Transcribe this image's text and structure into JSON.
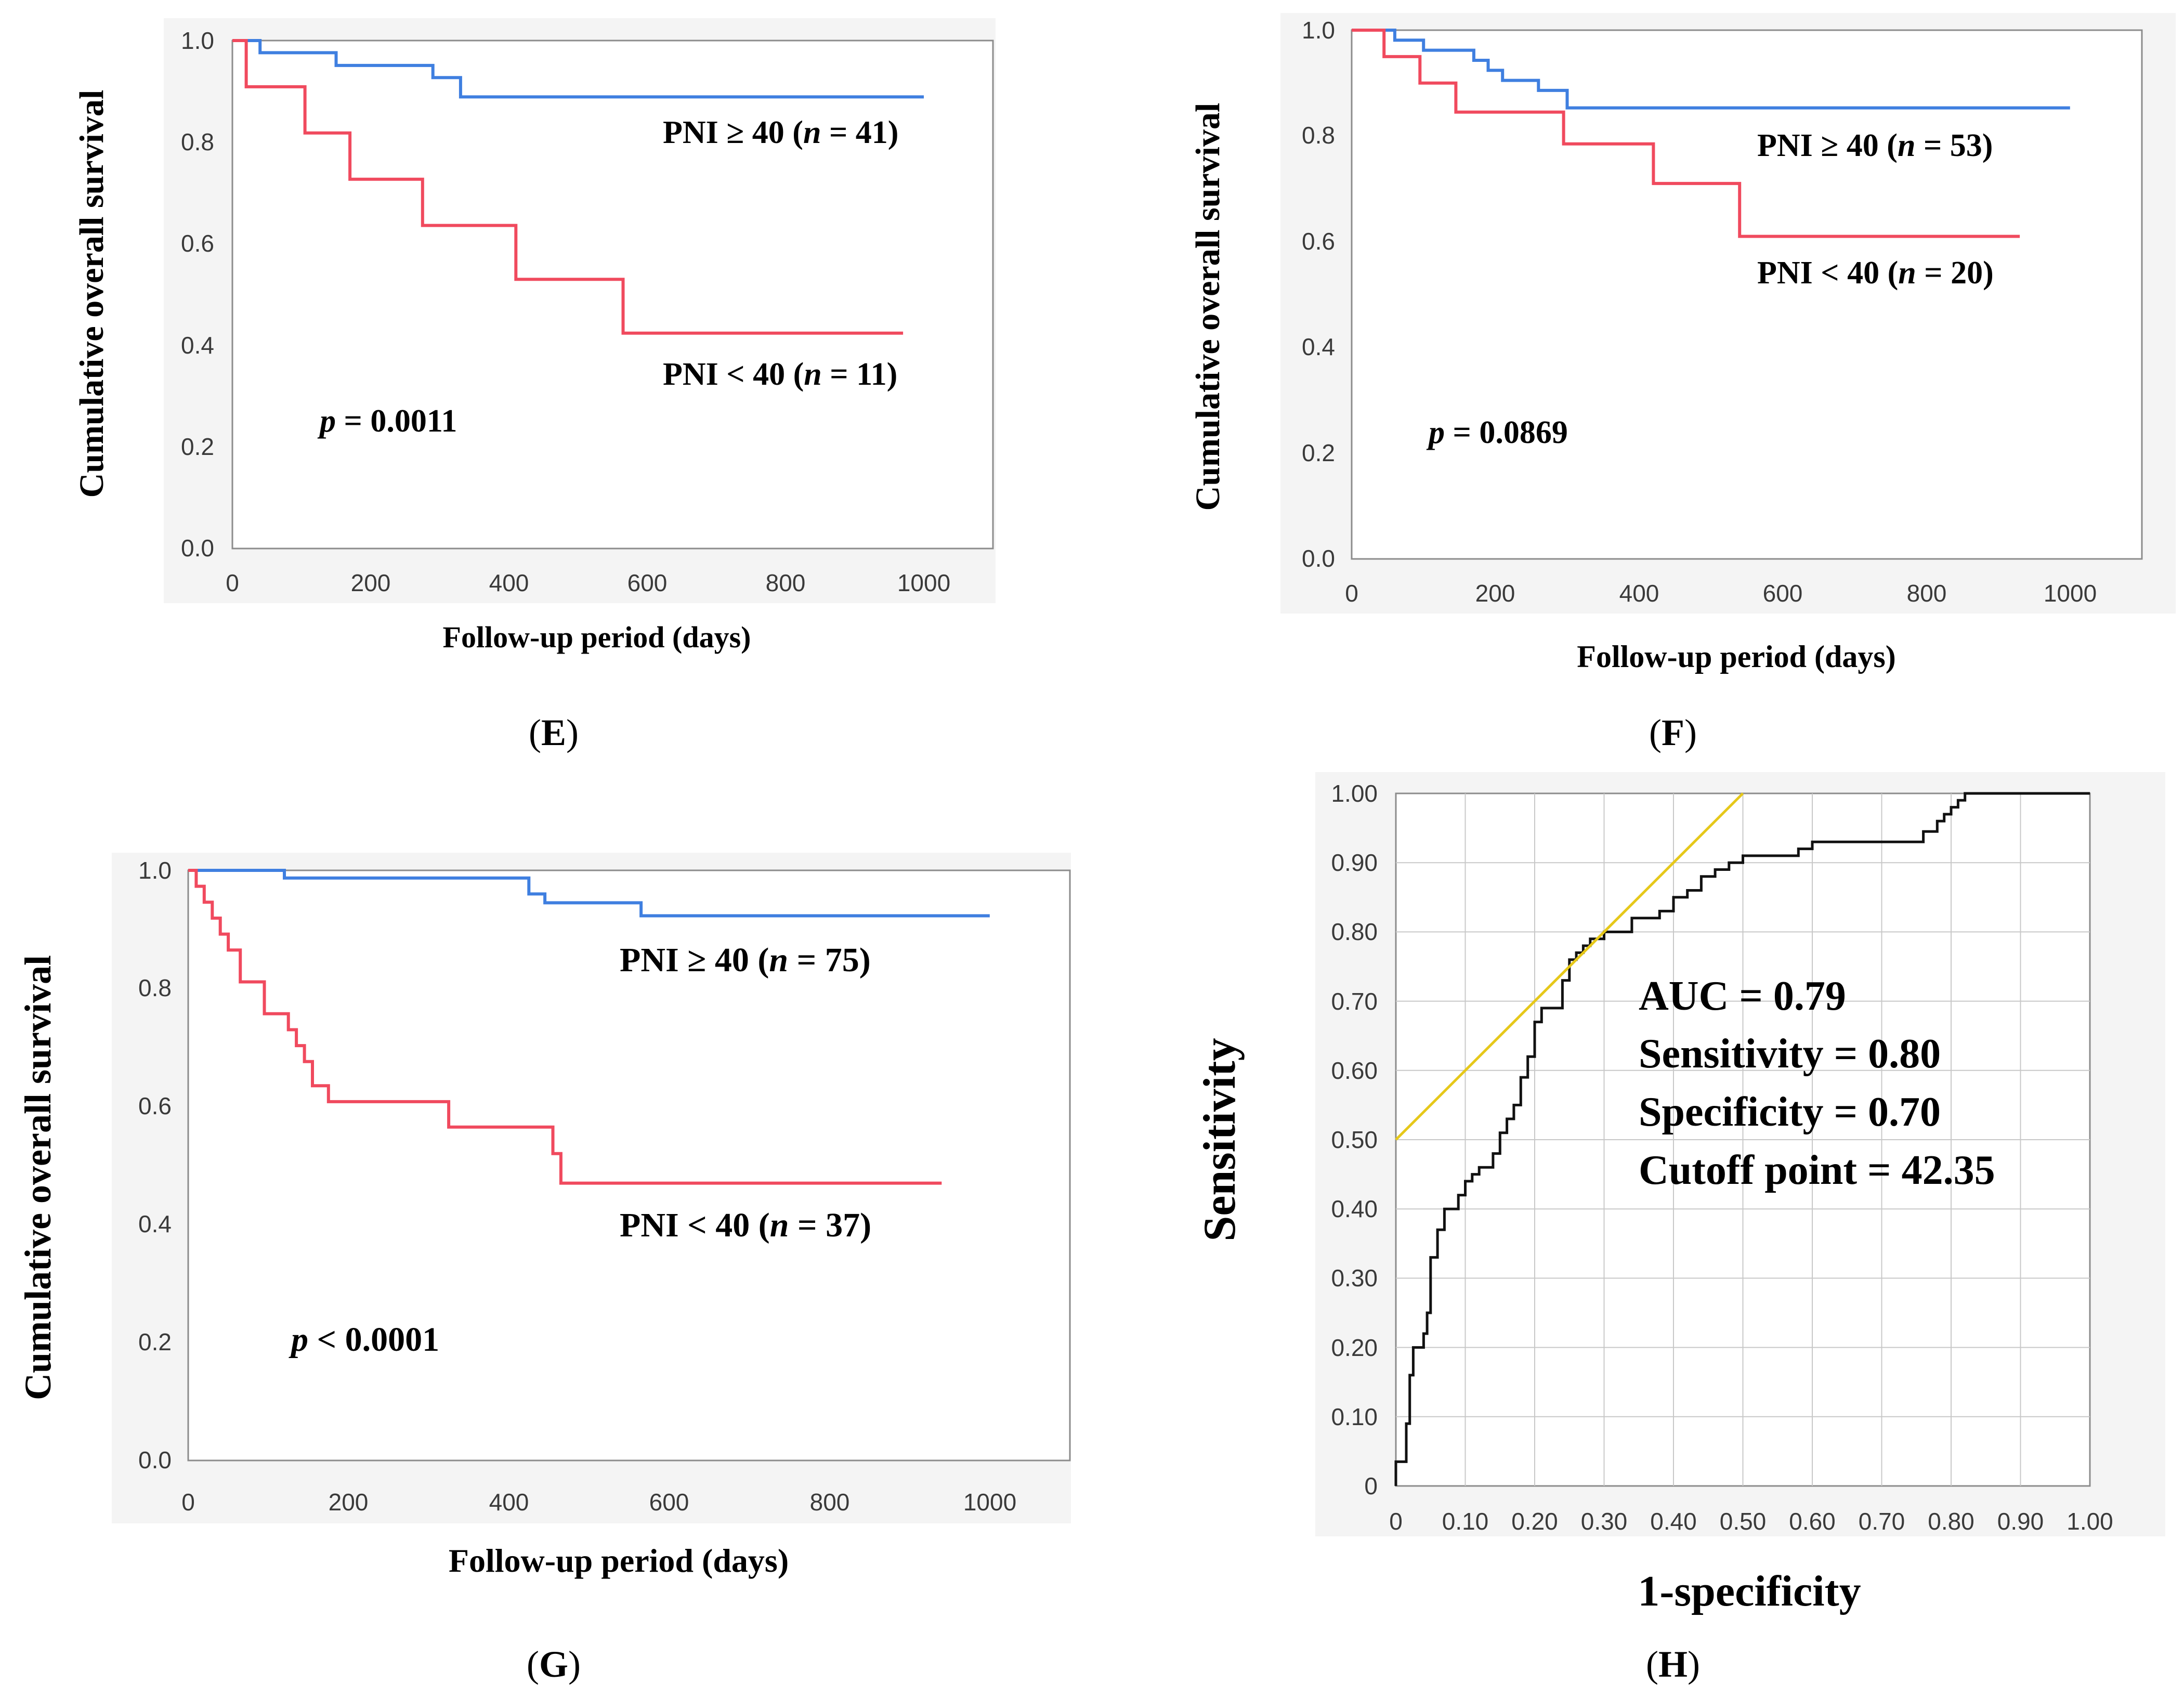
{
  "colors": {
    "high_pni": "#3f7fe0",
    "low_pni": "#f04a5e",
    "roc": "#111111",
    "reference_line": "#e6c81a",
    "frame": "#8c8c8c",
    "grid": "#c8c8c8",
    "panel_bg": "#f4f4f4"
  },
  "chart_data": [
    {
      "id": "E",
      "type": "line",
      "label": "E",
      "ylabel": "Cumulative overall survival",
      "xlabel": "Follow-up period (days)",
      "xlim": [
        0,
        1100
      ],
      "ylim": [
        0,
        1
      ],
      "xticks": [
        0,
        200,
        400,
        600,
        800,
        1000
      ],
      "yticks": [
        0,
        0.2,
        0.4,
        0.6,
        0.8,
        1.0
      ],
      "ytick_labels": [
        "0.0",
        "0.2",
        "0.4",
        "0.6",
        "0.8",
        "1.0"
      ],
      "series": [
        {
          "name": "PNI ≥ 40",
          "color_key": "high_pni",
          "label_prefix": "PNI ≥ 40 (",
          "n_symbol": "n",
          "label_suffix": " = 41)",
          "x": [
            0,
            40,
            150,
            290,
            330,
            1000
          ],
          "y": [
            1.0,
            0.976,
            0.951,
            0.927,
            0.889,
            0.889
          ]
        },
        {
          "name": "PNI < 40",
          "color_key": "low_pni",
          "label_prefix": "PNI < 40 (",
          "n_symbol": "n",
          "label_suffix": " = 11)",
          "x": [
            0,
            20,
            105,
            170,
            275,
            410,
            565,
            970
          ],
          "y": [
            1.0,
            0.909,
            0.818,
            0.727,
            0.636,
            0.53,
            0.424,
            0.424
          ]
        }
      ],
      "pvalue": {
        "symbol": "p",
        "text": " = 0.0011"
      }
    },
    {
      "id": "F",
      "type": "line",
      "label": "F",
      "ylabel": "Cumulative overall survival",
      "xlabel": "Follow-up period (days)",
      "xlim": [
        0,
        1100
      ],
      "ylim": [
        0,
        1
      ],
      "xticks": [
        0,
        200,
        400,
        600,
        800,
        1000
      ],
      "yticks": [
        0,
        0.2,
        0.4,
        0.6,
        0.8,
        1.0
      ],
      "ytick_labels": [
        "0.0",
        "0.2",
        "0.4",
        "0.6",
        "0.8",
        "1.0"
      ],
      "series": [
        {
          "name": "PNI ≥ 40",
          "color_key": "high_pni",
          "label_prefix": "PNI ≥ 40 (",
          "n_symbol": "n",
          "label_suffix": " = 53)",
          "x": [
            0,
            60,
            100,
            170,
            190,
            210,
            260,
            300,
            1000
          ],
          "y": [
            1.0,
            0.981,
            0.962,
            0.943,
            0.924,
            0.905,
            0.886,
            0.853,
            0.853
          ]
        },
        {
          "name": "PNI < 40",
          "color_key": "low_pni",
          "label_prefix": "PNI < 40 (",
          "n_symbol": "n",
          "label_suffix": " = 20)",
          "x": [
            0,
            45,
            95,
            145,
            295,
            420,
            540,
            930
          ],
          "y": [
            1.0,
            0.95,
            0.9,
            0.845,
            0.785,
            0.71,
            0.61,
            0.61
          ]
        }
      ],
      "pvalue": {
        "symbol": "p",
        "text": " = 0.0869"
      }
    },
    {
      "id": "G",
      "type": "line",
      "label": "G",
      "ylabel": "Cumulative overall survival",
      "xlabel": "Follow-up period (days)",
      "xlim": [
        0,
        1100
      ],
      "ylim": [
        0,
        1
      ],
      "xticks": [
        0,
        200,
        400,
        600,
        800,
        1000
      ],
      "yticks": [
        0,
        0.2,
        0.4,
        0.6,
        0.8,
        1.0
      ],
      "ytick_labels": [
        "0.0",
        "0.2",
        "0.4",
        "0.6",
        "0.8",
        "1.0"
      ],
      "series": [
        {
          "name": "PNI ≥ 40",
          "color_key": "high_pni",
          "label_prefix": "PNI ≥ 40 (",
          "n_symbol": "n",
          "label_suffix": " = 75)",
          "x": [
            0,
            120,
            425,
            445,
            565,
            1000
          ],
          "y": [
            1.0,
            0.987,
            0.96,
            0.945,
            0.923,
            0.923
          ]
        },
        {
          "name": "PNI < 40",
          "color_key": "low_pni",
          "label_prefix": "PNI < 40 (",
          "n_symbol": "n",
          "label_suffix": " = 37)",
          "x": [
            0,
            10,
            20,
            30,
            40,
            50,
            65,
            95,
            125,
            135,
            145,
            155,
            175,
            325,
            455,
            465,
            940
          ],
          "y": [
            1.0,
            0.973,
            0.946,
            0.919,
            0.892,
            0.865,
            0.811,
            0.757,
            0.73,
            0.703,
            0.676,
            0.635,
            0.608,
            0.565,
            0.52,
            0.47,
            0.47
          ]
        }
      ],
      "pvalue": {
        "symbol": "p",
        "text": " < 0.0001"
      }
    },
    {
      "id": "H",
      "type": "line",
      "label": "H",
      "ylabel": "Sensitivity",
      "xlabel": "1-specificity",
      "xlim": [
        0,
        1
      ],
      "ylim": [
        0,
        1
      ],
      "xticks": [
        0,
        0.1,
        0.2,
        0.3,
        0.4,
        0.5,
        0.6,
        0.7,
        0.8,
        0.9,
        1.0
      ],
      "xtick_labels": [
        "0",
        "0.10",
        "0.20",
        "0.30",
        "0.40",
        "0.50",
        "0.60",
        "0.70",
        "0.80",
        "0.90",
        "1.00"
      ],
      "yticks": [
        0,
        0.1,
        0.2,
        0.3,
        0.4,
        0.5,
        0.6,
        0.7,
        0.8,
        0.9,
        1.0
      ],
      "ytick_labels": [
        "0",
        "0.10",
        "0.20",
        "0.30",
        "0.40",
        "0.50",
        "0.60",
        "0.70",
        "0.80",
        "0.90",
        "1.00"
      ],
      "grid": true,
      "series": [
        {
          "name": "ROC curve",
          "color_key": "roc",
          "x": [
            0,
            0,
            0.015,
            0.015,
            0.02,
            0.02,
            0.025,
            0.025,
            0.04,
            0.04,
            0.045,
            0.045,
            0.05,
            0.05,
            0.06,
            0.06,
            0.07,
            0.07,
            0.09,
            0.09,
            0.1,
            0.1,
            0.11,
            0.11,
            0.12,
            0.12,
            0.14,
            0.14,
            0.15,
            0.15,
            0.16,
            0.16,
            0.17,
            0.17,
            0.18,
            0.18,
            0.19,
            0.19,
            0.2,
            0.2,
            0.21,
            0.21,
            0.24,
            0.24,
            0.25,
            0.25,
            0.26,
            0.26,
            0.27,
            0.27,
            0.28,
            0.28,
            0.3,
            0.3,
            0.34,
            0.34,
            0.38,
            0.38,
            0.4,
            0.4,
            0.42,
            0.42,
            0.44,
            0.44,
            0.46,
            0.46,
            0.48,
            0.48,
            0.5,
            0.5,
            0.58,
            0.58,
            0.6,
            0.6,
            0.76,
            0.76,
            0.78,
            0.78,
            0.79,
            0.79,
            0.8,
            0.8,
            0.81,
            0.81,
            0.82,
            0.82,
            1.0
          ],
          "y": [
            0,
            0.035,
            0.035,
            0.09,
            0.09,
            0.16,
            0.16,
            0.2,
            0.2,
            0.22,
            0.22,
            0.25,
            0.25,
            0.33,
            0.33,
            0.37,
            0.37,
            0.4,
            0.4,
            0.42,
            0.42,
            0.44,
            0.44,
            0.45,
            0.45,
            0.46,
            0.46,
            0.48,
            0.48,
            0.51,
            0.51,
            0.53,
            0.53,
            0.55,
            0.55,
            0.59,
            0.59,
            0.62,
            0.62,
            0.67,
            0.67,
            0.69,
            0.69,
            0.73,
            0.73,
            0.76,
            0.76,
            0.77,
            0.77,
            0.78,
            0.78,
            0.79,
            0.79,
            0.8,
            0.8,
            0.82,
            0.82,
            0.83,
            0.83,
            0.85,
            0.85,
            0.86,
            0.86,
            0.88,
            0.88,
            0.89,
            0.89,
            0.9,
            0.9,
            0.91,
            0.91,
            0.92,
            0.92,
            0.93,
            0.93,
            0.945,
            0.945,
            0.96,
            0.96,
            0.97,
            0.97,
            0.98,
            0.98,
            0.99,
            0.99,
            1.0,
            1.0
          ]
        },
        {
          "name": "Cutoff tangent line",
          "color_key": "reference_line",
          "x": [
            0,
            0.5
          ],
          "y": [
            0.5,
            1.0
          ]
        }
      ],
      "annotations": [
        "AUC = 0.79",
        "Sensitivity = 0.80",
        "Specificity = 0.70",
        "Cutoff point = 42.35"
      ]
    }
  ]
}
